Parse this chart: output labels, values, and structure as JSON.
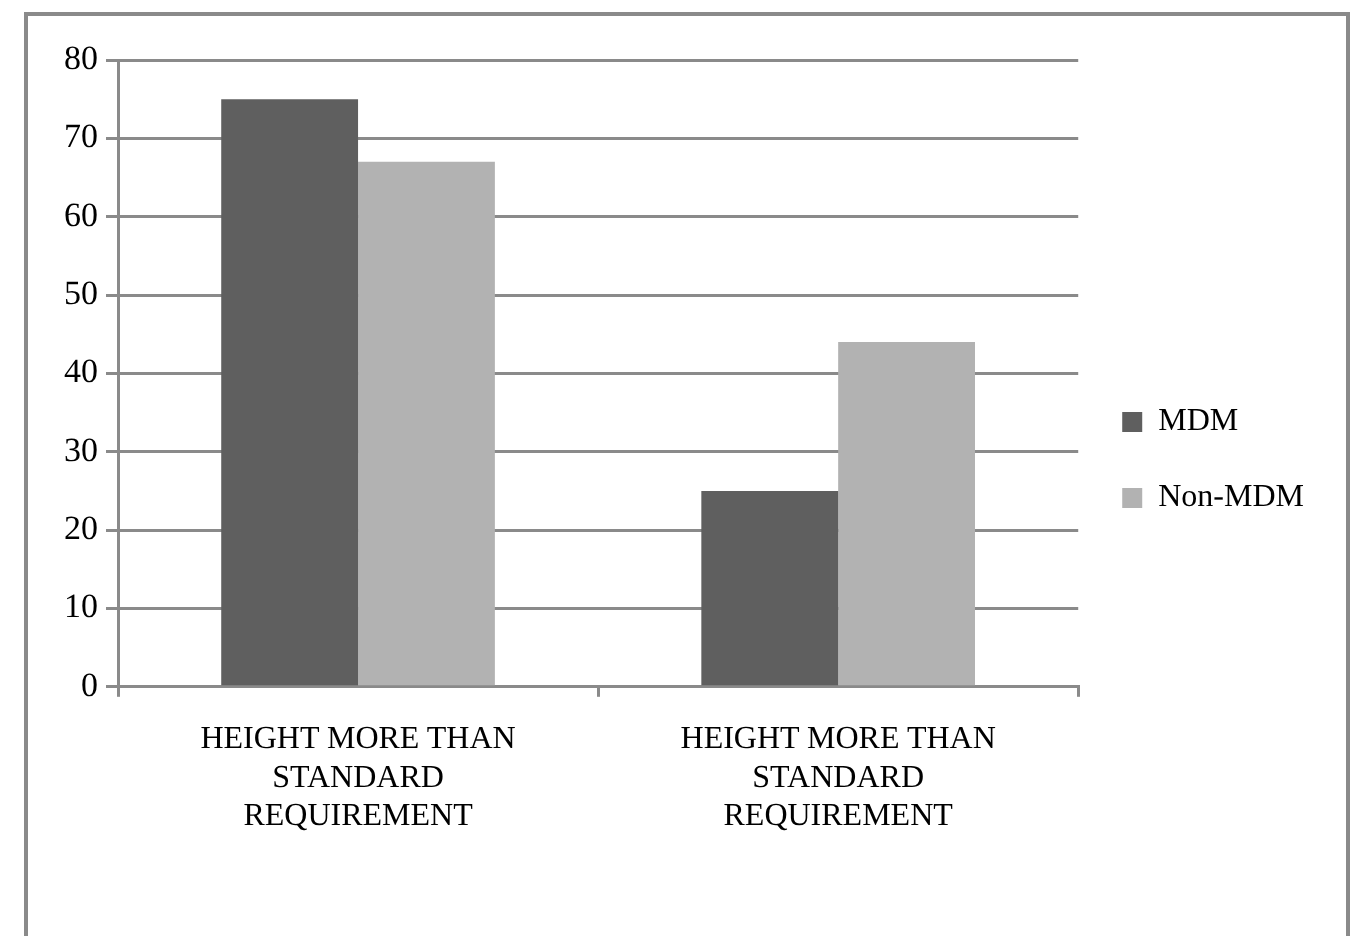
{
  "chart_data": {
    "type": "bar",
    "categories": [
      "HEIGHT MORE THAN STANDARD REQUIREMENT",
      "HEIGHT MORE THAN STANDARD REQUIREMENT"
    ],
    "series": [
      {
        "name": "MDM",
        "color": "#5f5f5f",
        "values": [
          75,
          25
        ]
      },
      {
        "name": "Non-MDM",
        "color": "#b2b2b2",
        "values": [
          67,
          44
        ]
      }
    ],
    "ylim": [
      0,
      80
    ],
    "yticks": [
      0,
      10,
      20,
      30,
      40,
      50,
      60,
      70,
      80
    ],
    "grid": "y",
    "legend": "right"
  }
}
